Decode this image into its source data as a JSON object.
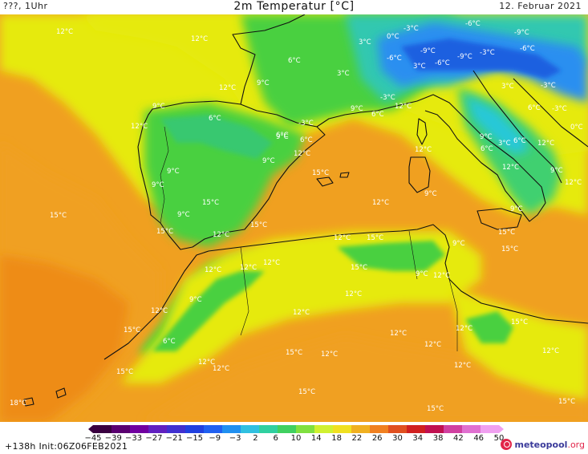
{
  "header": {
    "left": "???, 1Uhr",
    "title": "2m Temperatur [°C]",
    "right": "12. Februar 2021"
  },
  "footer": {
    "run_info": "+138h  Init:06Z06FEB2021",
    "logo_name": "meteopool",
    "logo_tld": ".org"
  },
  "colorbar": {
    "ticks": [
      "−45",
      "−39",
      "−33",
      "−27",
      "−21",
      "−15",
      "−9",
      "−3",
      "2",
      "6",
      "10",
      "14",
      "18",
      "22",
      "26",
      "30",
      "34",
      "38",
      "42",
      "46",
      "50"
    ],
    "colors": [
      "#3a0040",
      "#5a0070",
      "#7000a0",
      "#6020c0",
      "#4030d0",
      "#2040e0",
      "#2060f0",
      "#2090f0",
      "#30c0e0",
      "#30d0a0",
      "#40d060",
      "#80e040",
      "#d0f030",
      "#f0e020",
      "#f0b020",
      "#f08020",
      "#e05020",
      "#d02020",
      "#c01050",
      "#d040a0",
      "#e070d0",
      "#f0a0f0"
    ]
  },
  "labels": [
    {
      "text": "12°C"
    },
    {
      "text": "12°C"
    },
    {
      "text": "6°C"
    },
    {
      "text": "3°C"
    },
    {
      "text": "0°C"
    },
    {
      "text": "-3°C"
    },
    {
      "text": "-6°C"
    },
    {
      "text": "-9°C"
    },
    {
      "text": "-6°C"
    },
    {
      "text": "-9°C"
    },
    {
      "text": "-6°C"
    },
    {
      "text": "-9°C"
    },
    {
      "text": "-3°C"
    },
    {
      "text": "3°C"
    },
    {
      "text": "-6°C"
    },
    {
      "text": "3°C"
    },
    {
      "text": "12°C"
    },
    {
      "text": "9°C"
    },
    {
      "text": "3°C"
    },
    {
      "text": "-3°C"
    },
    {
      "text": "9°C"
    },
    {
      "text": "-3°C"
    },
    {
      "text": "9°C"
    },
    {
      "text": "6°C"
    },
    {
      "text": "12°C"
    },
    {
      "text": "6°C"
    },
    {
      "text": "-3°C"
    },
    {
      "text": "6°C"
    },
    {
      "text": "0°C"
    },
    {
      "text": "12°C"
    },
    {
      "text": "6°C"
    },
    {
      "text": "-3°C"
    },
    {
      "text": "9°C"
    },
    {
      "text": "6°C"
    },
    {
      "text": "9°C"
    },
    {
      "text": "6°C"
    },
    {
      "text": "3°C"
    },
    {
      "text": "6°C"
    },
    {
      "text": "12°C"
    },
    {
      "text": "9°C"
    },
    {
      "text": "12°C"
    },
    {
      "text": "9°C"
    },
    {
      "text": "12°C"
    },
    {
      "text": "12°C"
    },
    {
      "text": "9°C"
    },
    {
      "text": "15°C"
    },
    {
      "text": "12°C"
    },
    {
      "text": "9°C"
    },
    {
      "text": "9°C"
    },
    {
      "text": "12°C"
    },
    {
      "text": "15°C"
    },
    {
      "text": "9°C"
    },
    {
      "text": "15°C"
    },
    {
      "text": "15°C"
    },
    {
      "text": "9°C"
    },
    {
      "text": "12°C"
    },
    {
      "text": "15°C"
    },
    {
      "text": "12°C"
    },
    {
      "text": "15°C"
    },
    {
      "text": "9°C"
    },
    {
      "text": "15°C"
    },
    {
      "text": "15°C"
    },
    {
      "text": "12°C"
    },
    {
      "text": "12°C"
    },
    {
      "text": "15°C"
    },
    {
      "text": "12°C"
    },
    {
      "text": "9°C"
    },
    {
      "text": "12°C"
    },
    {
      "text": "12°C"
    },
    {
      "text": "12°C"
    },
    {
      "text": "12°C"
    },
    {
      "text": "12°C"
    },
    {
      "text": "9°C"
    },
    {
      "text": "12°C"
    },
    {
      "text": "15°C"
    },
    {
      "text": "12°C"
    },
    {
      "text": "15°C"
    },
    {
      "text": "6°C"
    },
    {
      "text": "12°C"
    },
    {
      "text": "15°C"
    },
    {
      "text": "12°C"
    },
    {
      "text": "15°C"
    },
    {
      "text": "12°C"
    },
    {
      "text": "12°C"
    },
    {
      "text": "15°C"
    },
    {
      "text": "15°C"
    },
    {
      "text": "12°C"
    },
    {
      "text": "15°C"
    },
    {
      "text": "18°C"
    }
  ]
}
